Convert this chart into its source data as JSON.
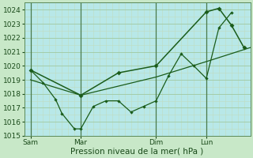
{
  "title": "",
  "xlabel": "Pression niveau de la mer( hPa )",
  "bg_color": "#c8e8c8",
  "plot_bg_color": "#b8e8e8",
  "line_color": "#1a5c1a",
  "grid_major_color": "#a0c8a0",
  "grid_minor_color": "#c0dcc0",
  "vline_color": "#4a7a4a",
  "ylim": [
    1015,
    1024.5
  ],
  "yticks": [
    1015,
    1016,
    1017,
    1018,
    1019,
    1020,
    1021,
    1022,
    1023,
    1024
  ],
  "xlim": [
    0,
    18
  ],
  "day_labels": [
    "Sam",
    "Mar",
    "Dim",
    "Lun"
  ],
  "day_positions": [
    0.5,
    4.5,
    10.5,
    14.5
  ],
  "vline_positions": [
    0.5,
    4.5,
    10.5,
    14.5
  ],
  "series1_x": [
    0.5,
    1.5,
    2.5,
    3.0,
    4.0,
    4.5,
    5.5,
    6.5,
    7.5,
    8.5,
    9.5,
    10.5,
    11.5,
    12.5,
    13.5,
    14.5,
    15.5,
    16.5
  ],
  "series1_y": [
    1019.7,
    1018.8,
    1017.6,
    1016.6,
    1015.5,
    1015.5,
    1017.1,
    1017.5,
    1017.5,
    1016.7,
    1017.1,
    1017.5,
    1019.3,
    1020.85,
    1020.0,
    1019.1,
    1022.7,
    1023.8
  ],
  "series2_x": [
    0.5,
    4.5,
    10.5,
    14.5,
    18.0
  ],
  "series2_y": [
    1019.0,
    1017.9,
    1019.2,
    1020.3,
    1021.3
  ],
  "series3_x": [
    0.5,
    4.5,
    7.5,
    10.5,
    14.5,
    15.5,
    16.5,
    17.5
  ],
  "series3_y": [
    1019.7,
    1017.9,
    1019.5,
    1020.0,
    1023.85,
    1024.1,
    1022.9,
    1021.3
  ],
  "fontsize_tick": 6.5,
  "fontsize_label": 7.5
}
